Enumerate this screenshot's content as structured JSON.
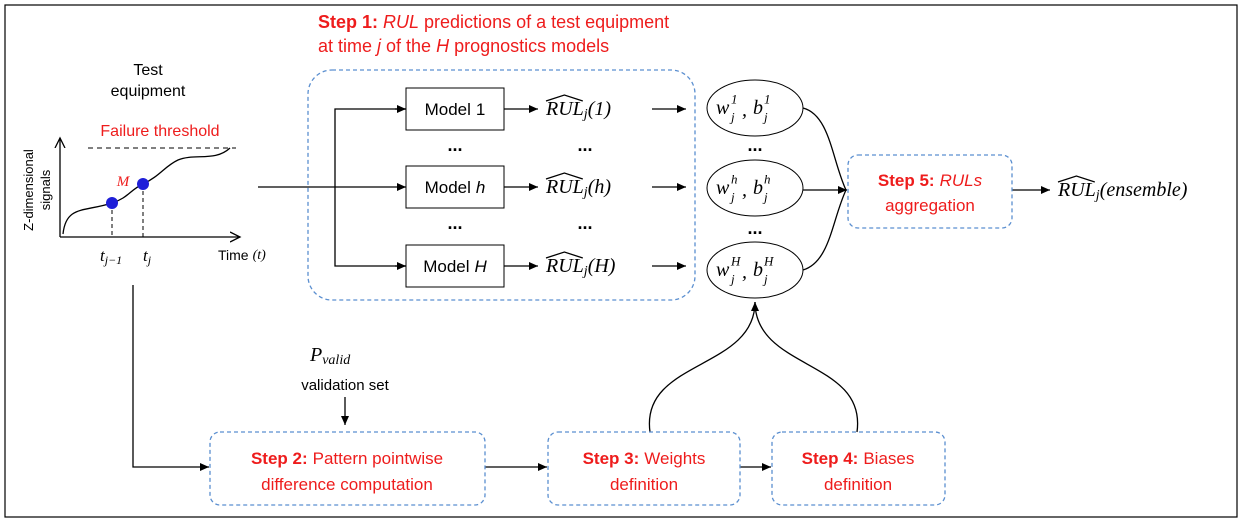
{
  "equipment": {
    "title_lines": [
      "Test",
      "equipment"
    ],
    "threshold": "Failure threshold",
    "y_label_lines": [
      "Z-dimensional",
      "signals"
    ],
    "point": "M",
    "ticks": [
      {
        "base": "t",
        "sub": "j−1"
      },
      {
        "base": "t",
        "sub": "j"
      }
    ],
    "x_label": "Time",
    "x_unit": "(t)"
  },
  "step1": {
    "label": "Step 1:",
    "rul": "RUL",
    "line1_rest": "predictions of a test equipment",
    "line2": [
      "at time",
      "j",
      "of the",
      "H",
      "prognostics models"
    ]
  },
  "ellipsis": "...",
  "models": [
    {
      "name": "Model",
      "index": "1",
      "output": {
        "base": "RUL",
        "sub": "j",
        "arg": "(1)"
      },
      "weight": {
        "w": "w",
        "b": "b",
        "sep": ",",
        "sub": "j",
        "sup": "1"
      }
    },
    {
      "name": "Model",
      "index": "h",
      "output": {
        "base": "RUL",
        "sub": "j",
        "arg": "(h)"
      },
      "weight": {
        "w": "w",
        "b": "b",
        "sep": ",",
        "sub": "j",
        "sup": "h"
      }
    },
    {
      "name": "Model",
      "index": "H",
      "output": {
        "base": "RUL",
        "sub": "j",
        "arg": "(H)"
      },
      "weight": {
        "w": "w",
        "b": "b",
        "sep": ",",
        "sub": "j",
        "sup": "H"
      }
    }
  ],
  "step5": {
    "label": "Step 5:",
    "emph": "RULs",
    "line2": "aggregation"
  },
  "output": {
    "base": "RUL",
    "sub": "j",
    "arg": "(ensemble)"
  },
  "validation": {
    "base": "P",
    "sub": "valid",
    "label": "validation set"
  },
  "steps": [
    {
      "label": "Step 2:",
      "line1": "Pattern pointwise",
      "line2": "difference computation"
    },
    {
      "label": "Step 3:",
      "line1": "Weights",
      "line2": "definition"
    },
    {
      "label": "Step 4:",
      "line1": "Biases",
      "line2": "definition"
    }
  ]
}
